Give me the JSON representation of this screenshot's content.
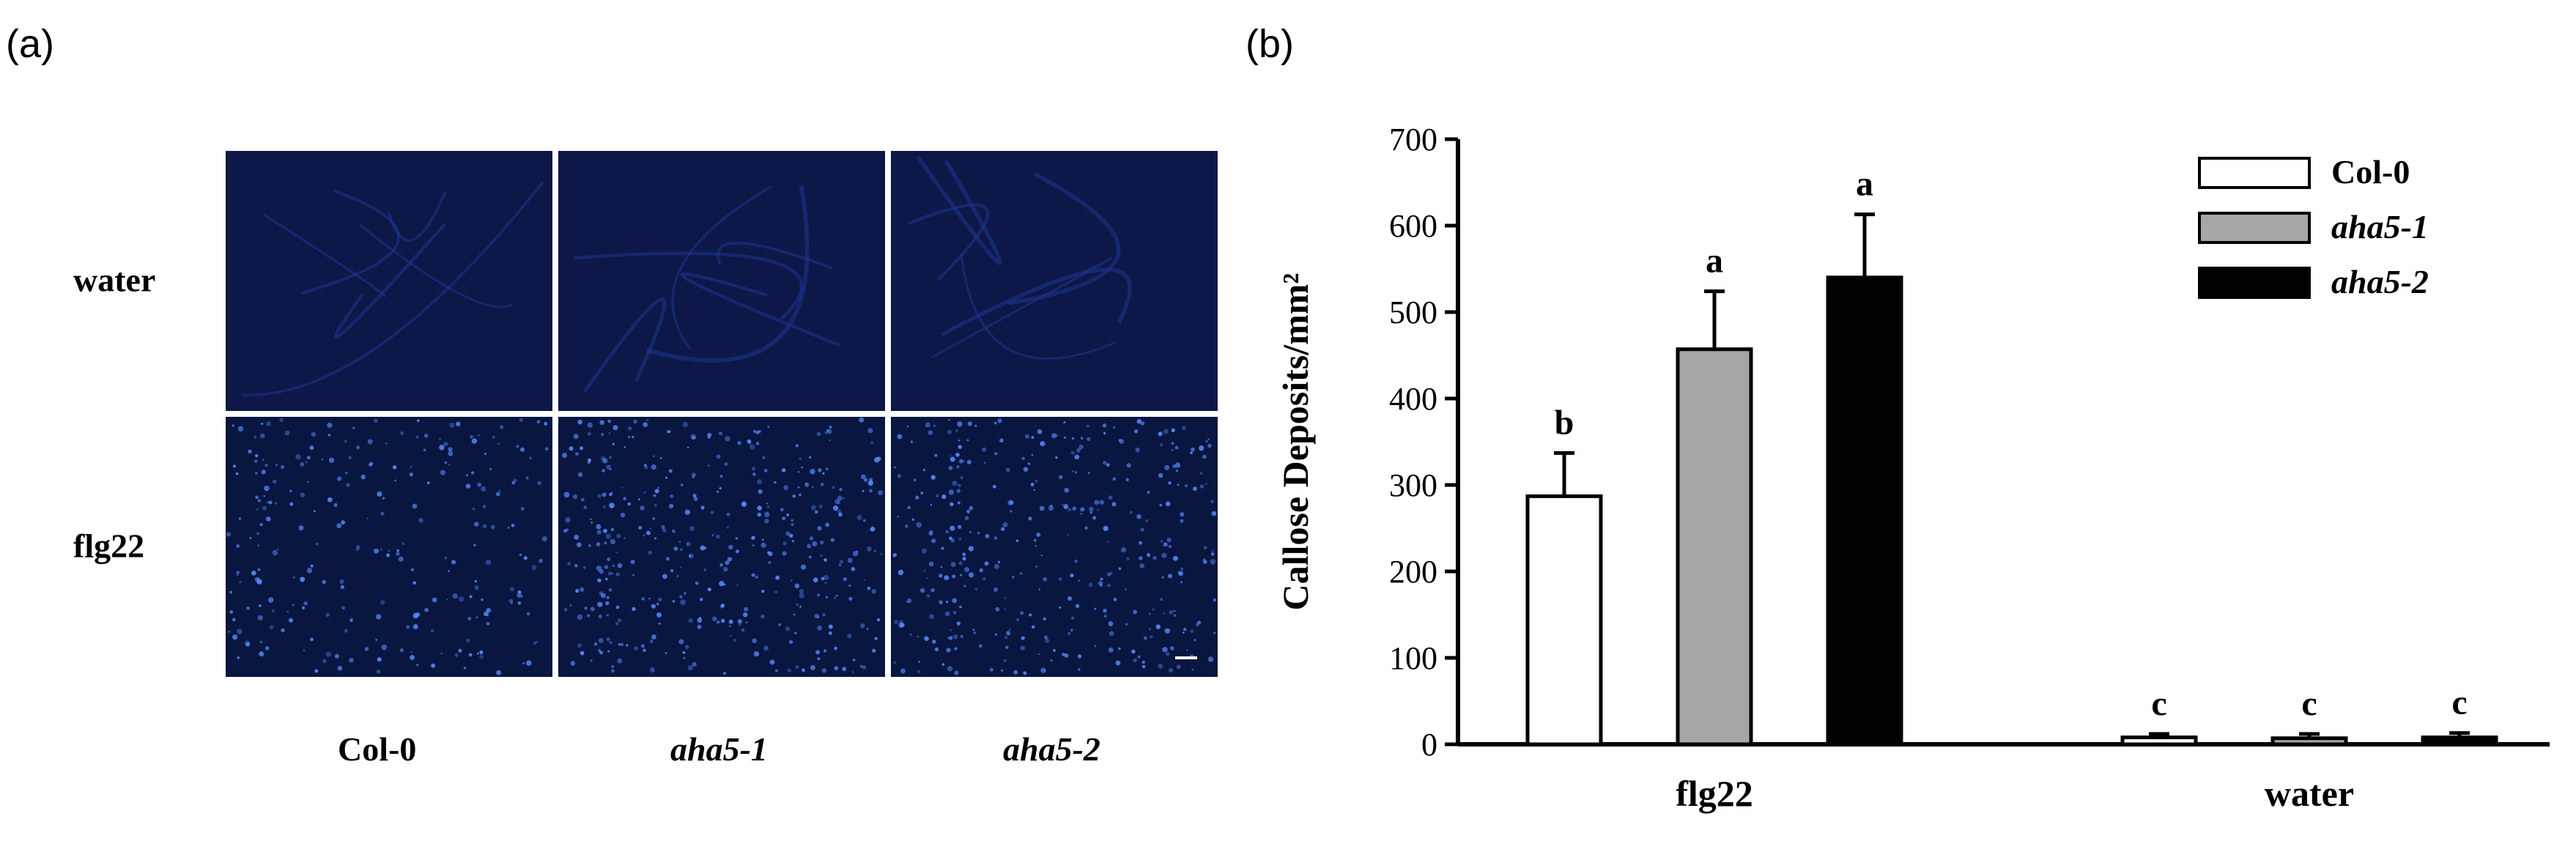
{
  "panel_a": {
    "label": "(a)",
    "row_labels": [
      "water",
      "flg22"
    ],
    "column_labels": [
      "Col-0",
      "aha5-1",
      "aha5-2"
    ],
    "colors": {
      "water_bg": "#0d1848",
      "flg22_bg": "#081640",
      "vein": "#1f3590",
      "dot": "#5a8cff"
    }
  },
  "panel_b": {
    "label": "(b)"
  },
  "chart_data": {
    "type": "bar",
    "categories": [
      "flg22",
      "water"
    ],
    "series": [
      {
        "name": "Col-0",
        "values": [
          287,
          8
        ],
        "errors": [
          50,
          4
        ],
        "letters": [
          "b",
          "c"
        ],
        "color": "#ffffff",
        "italic": false
      },
      {
        "name": "aha5-1",
        "values": [
          457,
          7
        ],
        "errors": [
          67,
          5
        ],
        "letters": [
          "a",
          "c"
        ],
        "color": "#a6a6a6",
        "italic": true
      },
      {
        "name": "aha5-2",
        "values": [
          540,
          8
        ],
        "errors": [
          73,
          5
        ],
        "letters": [
          "a",
          "c"
        ],
        "color": "#000000",
        "italic": true
      }
    ],
    "yticks": [
      "0",
      "100",
      "200",
      "300",
      "400",
      "500",
      "600",
      "700"
    ],
    "ylabel": "Callose Deposits/mm²",
    "xlabel": "",
    "ylim": [
      0,
      700
    ],
    "grid": false,
    "legend": "top-right"
  }
}
